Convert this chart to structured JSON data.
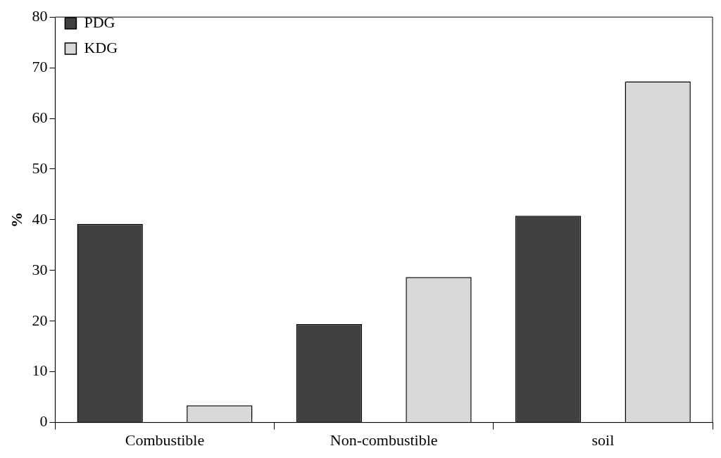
{
  "chart_data": {
    "type": "bar",
    "ylabel": "%",
    "categories": [
      "Combustible",
      "Non-combustible",
      "soil"
    ],
    "series": [
      {
        "name": "PDG",
        "color": "#404040",
        "values": [
          39.2,
          19.4,
          40.8
        ]
      },
      {
        "name": "KDG",
        "color": "#d9d9d9",
        "values": [
          3.4,
          28.7,
          67.3
        ]
      }
    ],
    "ylim": [
      0,
      80
    ],
    "yticks": [
      0,
      10,
      20,
      30,
      40,
      50,
      60,
      70,
      80
    ],
    "grid": false,
    "legend": "top left"
  }
}
